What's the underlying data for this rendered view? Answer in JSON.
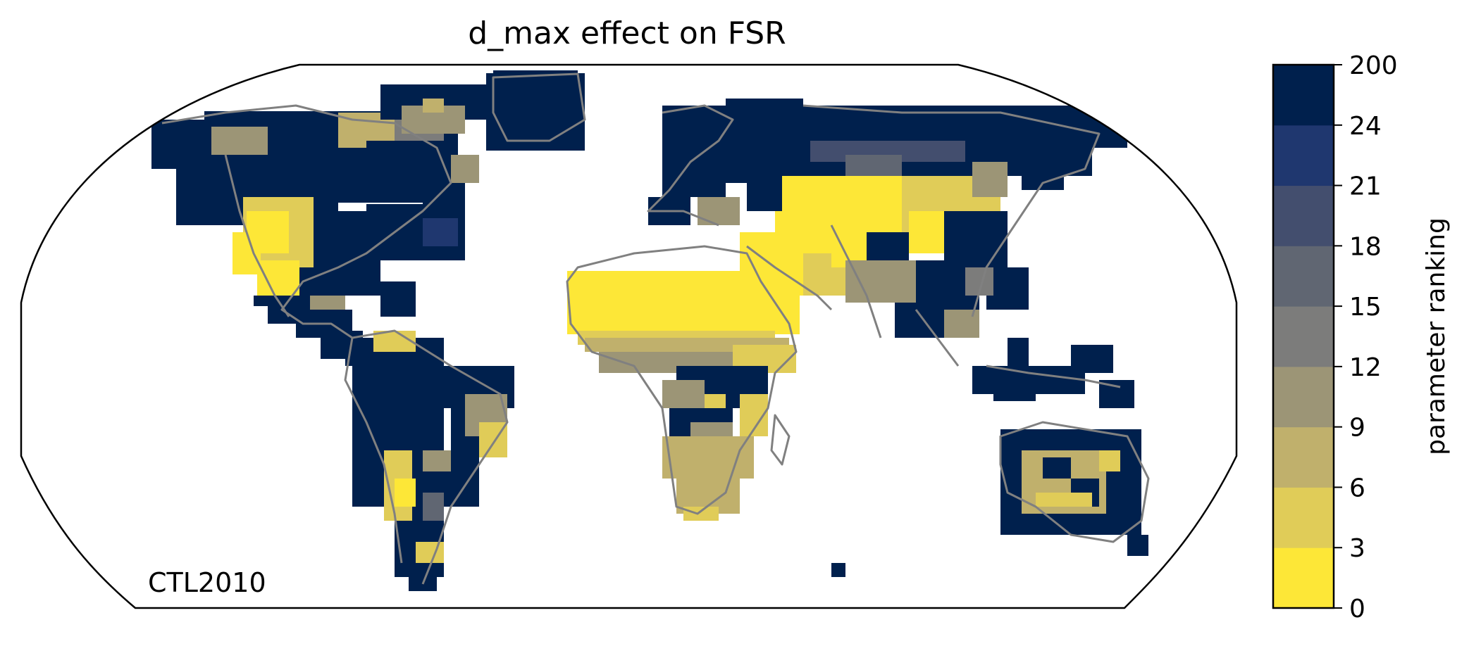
{
  "map": {
    "title": "d_max effect on FSR",
    "run_label": "CTL2010",
    "projection": "robinson",
    "coastline_color": "#808080",
    "ocean_color": "#ffffff"
  },
  "colorbar": {
    "label": "parameter ranking",
    "ticks": [
      "0",
      "3",
      "6",
      "9",
      "12",
      "15",
      "18",
      "21",
      "24",
      "200"
    ],
    "bins": [
      {
        "range": "0-3",
        "color": "#fde737"
      },
      {
        "range": "3-6",
        "color": "#e0cc58"
      },
      {
        "range": "6-9",
        "color": "#c0b06c"
      },
      {
        "range": "9-12",
        "color": "#9c9576"
      },
      {
        "range": "12-15",
        "color": "#7c7c7b"
      },
      {
        "range": "15-18",
        "color": "#606672"
      },
      {
        "range": "18-21",
        "color": "#434e6e"
      },
      {
        "range": "21-24",
        "color": "#1f376f"
      },
      {
        "range": "24-200",
        "color": "#00204d"
      }
    ]
  }
}
